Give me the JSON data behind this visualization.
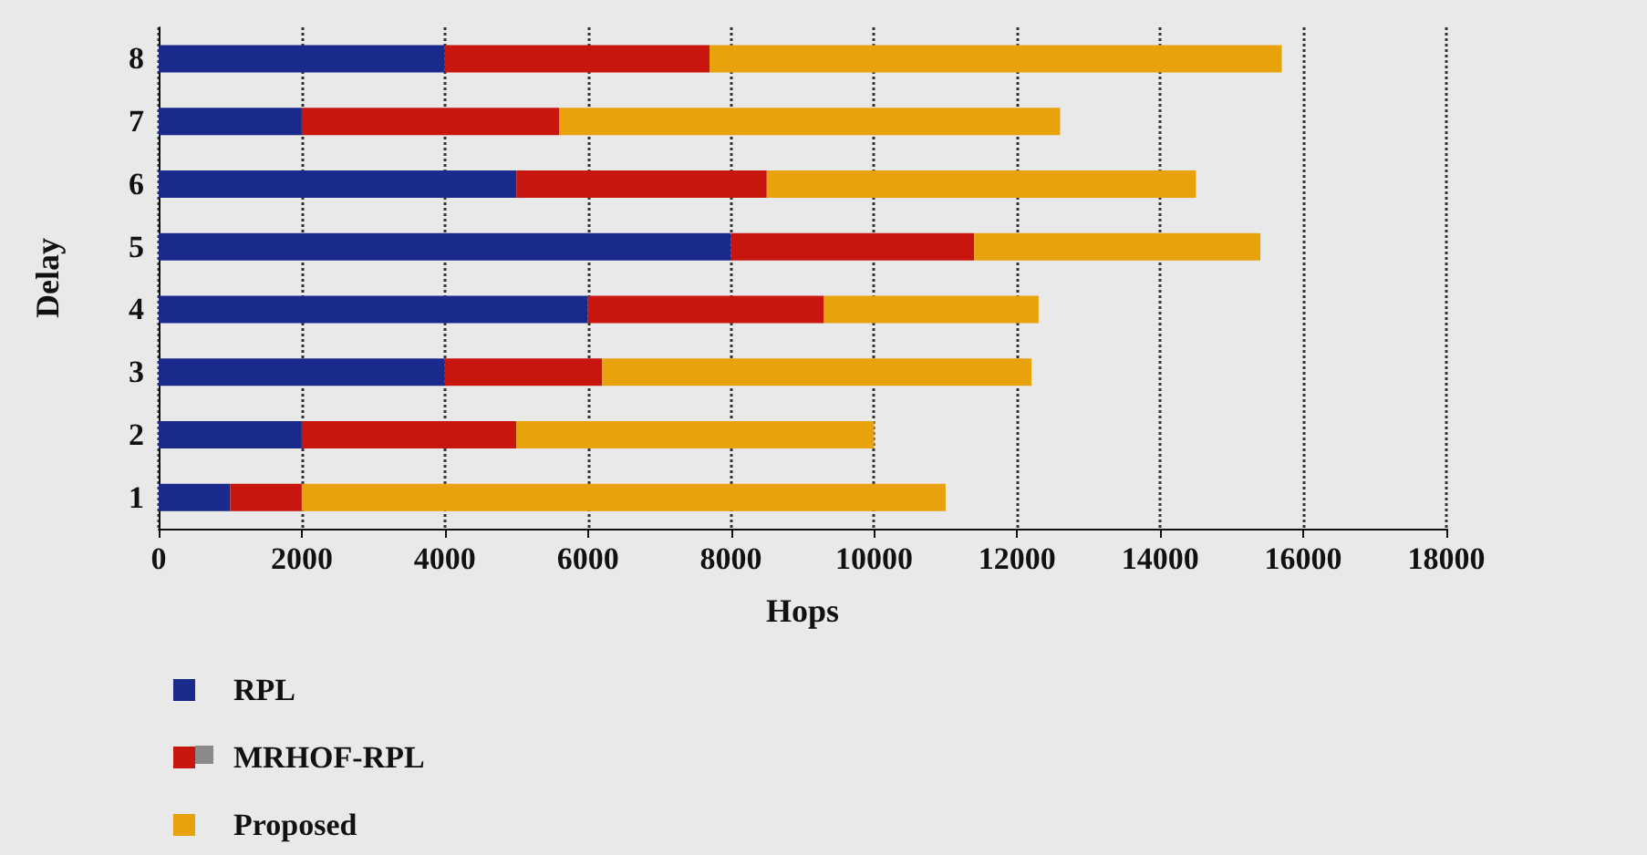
{
  "chart_data": {
    "type": "bar",
    "orientation": "horizontal",
    "stacked": true,
    "xlabel": "Hops",
    "ylabel": "Delay",
    "categories": [
      "8",
      "7",
      "6",
      "5",
      "4",
      "3",
      "2",
      "1"
    ],
    "series": [
      {
        "name": "RPL",
        "color": "#1a2a8c",
        "values": [
          4000,
          2000,
          5000,
          8000,
          6000,
          4000,
          2000,
          1000
        ]
      },
      {
        "name": "MRHOF-RPL",
        "color": "#c8160f",
        "values": [
          3700,
          3600,
          3500,
          3400,
          3300,
          2200,
          3000,
          1000
        ]
      },
      {
        "name": "Proposed",
        "color": "#e8a20c",
        "values": [
          8000,
          7000,
          6000,
          4000,
          3000,
          6000,
          5000,
          9000
        ]
      }
    ],
    "xlim": [
      0,
      18000
    ],
    "xticks": [
      0,
      2000,
      4000,
      6000,
      8000,
      10000,
      12000,
      14000,
      16000,
      18000
    ],
    "grid": "x",
    "legend": "bottom left"
  }
}
